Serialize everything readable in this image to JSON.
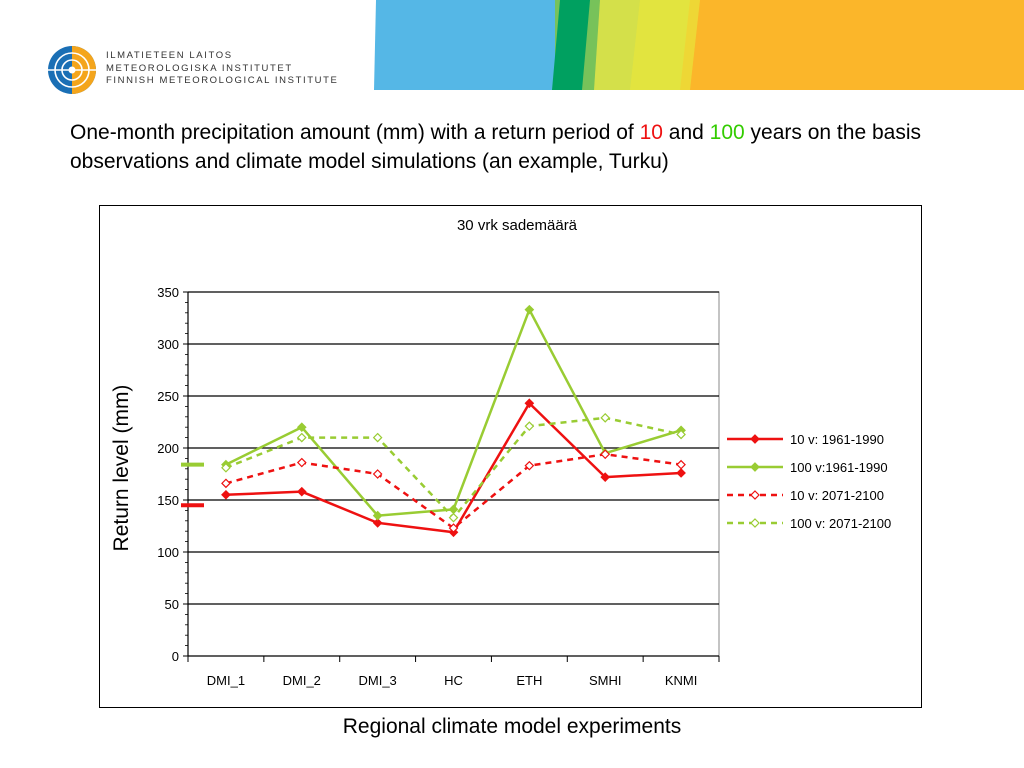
{
  "org": {
    "lines": [
      "ILMATIETEEN LAITOS",
      "METEOROLOGISKA INSTITUTET",
      "FINNISH METEOROLOGICAL INSTITUTE"
    ]
  },
  "headline": {
    "part1": "One-month precipitation amount (mm) with a return period of ",
    "num10": "10",
    "and": " and ",
    "num100": "100",
    "part2": " years on the basis observations and climate model simulations (an example, Turku)"
  },
  "colors": {
    "red": "#ee1111",
    "green": "#99cc33"
  },
  "chart_data": {
    "type": "line",
    "title": "30 vrk sademäärä",
    "xlabel": "Regional climate model experiments",
    "ylabel": "Return level (mm)",
    "categories": [
      "DMI_1",
      "DMI_2",
      "DMI_3",
      "HC",
      "ETH",
      "SMHI",
      "KNMI"
    ],
    "ylim": [
      0,
      350
    ],
    "yticks": [
      "0",
      "50",
      "100",
      "150",
      "200",
      "250",
      "300",
      "350"
    ],
    "grid": true,
    "legend_position": "right",
    "series": [
      {
        "name": "10 v: 1961-1990",
        "color": "#ee1111",
        "style": "solid",
        "marker": "diamond-filled",
        "values": [
          155,
          158,
          128,
          119,
          243,
          172,
          176
        ]
      },
      {
        "name": "100 v:1961-1990",
        "color": "#99cc33",
        "style": "solid",
        "marker": "diamond-filled",
        "values": [
          184,
          220,
          135,
          141,
          333,
          195,
          217
        ]
      },
      {
        "name": "10 v: 2071-2100",
        "color": "#ee1111",
        "style": "dashed",
        "marker": "diamond-open",
        "values": [
          166,
          186,
          175,
          123,
          183,
          194,
          184
        ]
      },
      {
        "name": "100 v: 2071-2100",
        "color": "#99cc33",
        "style": "dashed",
        "marker": "diamond-open",
        "values": [
          181,
          210,
          210,
          133,
          221,
          229,
          213
        ]
      }
    ],
    "reference_marks": [
      {
        "value": 145,
        "color": "#ee1111"
      },
      {
        "value": 184,
        "color": "#99cc33"
      }
    ]
  }
}
